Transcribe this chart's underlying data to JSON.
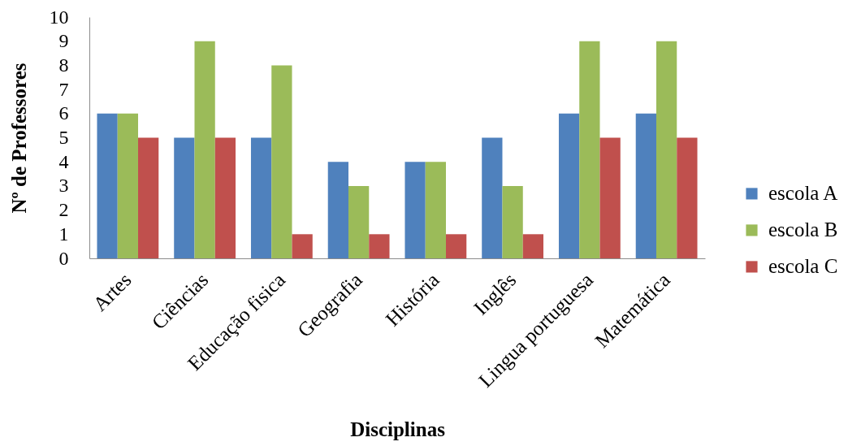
{
  "chart_data": {
    "type": "bar",
    "xlabel": "Disciplinas",
    "ylabel": "Nº de Professores",
    "categories": [
      "Artes",
      "Ciências",
      "Educação fisica",
      "Geografia",
      "História",
      "Inglês",
      "Lingua portuguesa",
      "Matemática"
    ],
    "series": [
      {
        "name": "escola A",
        "color": "#4f81bd",
        "values": [
          6,
          5,
          5,
          4,
          4,
          5,
          6,
          6
        ]
      },
      {
        "name": "escola B",
        "color": "#9bbb59",
        "values": [
          6,
          9,
          8,
          3,
          4,
          3,
          9,
          9
        ]
      },
      {
        "name": "escola C",
        "color": "#c0504d",
        "values": [
          5,
          5,
          1,
          1,
          1,
          1,
          5,
          5
        ]
      }
    ],
    "ylim": [
      0,
      10
    ],
    "yticks": [
      0,
      1,
      2,
      3,
      4,
      5,
      6,
      7,
      8,
      9,
      10
    ],
    "legend": "right"
  }
}
